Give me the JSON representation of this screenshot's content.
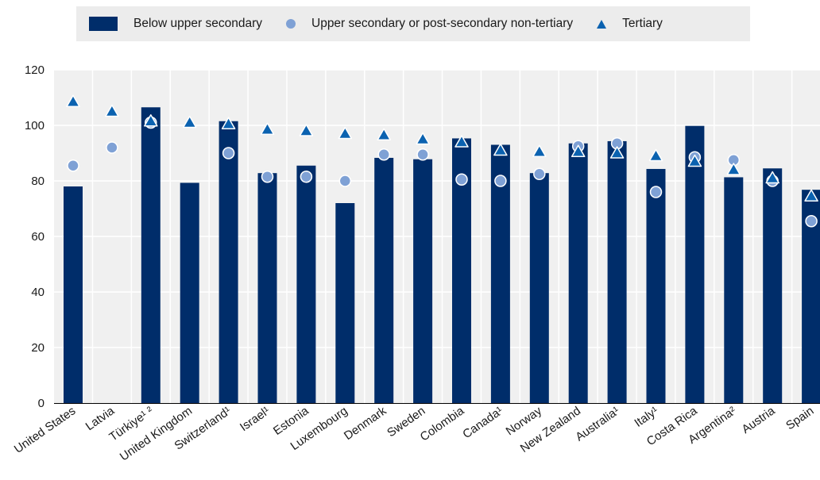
{
  "legend": {
    "bar_label": "Below upper secondary",
    "circle_label": "Upper secondary or post-secondary non-tertiary",
    "triangle_label": "Tertiary"
  },
  "colors": {
    "bar": "#002d6a",
    "circle": "#7fa1d5",
    "triangle": "#0b62b0",
    "plot_bg": "#f0f0f0",
    "grid": "#ffffff"
  },
  "chart_data": {
    "type": "bar",
    "title": "",
    "xlabel": "",
    "ylabel": "",
    "ylim": [
      0,
      120
    ],
    "yticks": [
      0,
      20,
      40,
      60,
      80,
      100,
      120
    ],
    "grid": true,
    "legend_position": "top",
    "categories": [
      "United States",
      "Latvia",
      "Türkiye¹ ²",
      "United Kingdom",
      "Switzerland¹",
      "Israel¹",
      "Estonia",
      "Luxembourg",
      "Denmark",
      "Sweden",
      "Colombia",
      "Canada¹",
      "Norway",
      "New Zealand",
      "Australia¹",
      "Italy¹",
      "Costa Rica",
      "Argentina²",
      "Austria",
      "Spain"
    ],
    "series": [
      {
        "name": "Below upper secondary",
        "kind": "bar",
        "values": [
          78,
          null,
          106.5,
          79.3,
          101.5,
          82.8,
          85.5,
          72,
          88.3,
          87.8,
          95.3,
          93,
          82.8,
          93.5,
          94.3,
          84.3,
          99.8,
          81.3,
          84.5,
          76.8
        ]
      },
      {
        "name": "Upper secondary or post-secondary non-tertiary",
        "kind": "circle",
        "values": [
          85.5,
          92,
          101,
          null,
          90,
          81.5,
          81.5,
          80,
          89.5,
          89.5,
          80.5,
          80,
          82.5,
          92.5,
          93.5,
          76,
          88.5,
          87.5,
          80,
          65.5
        ]
      },
      {
        "name": "Tertiary",
        "kind": "triangle",
        "values": [
          108.5,
          105,
          101.5,
          101,
          100.5,
          98.5,
          98,
          97,
          96.5,
          95,
          94,
          91,
          90.5,
          90.5,
          90,
          89,
          87,
          84,
          81,
          74.5
        ]
      }
    ]
  }
}
